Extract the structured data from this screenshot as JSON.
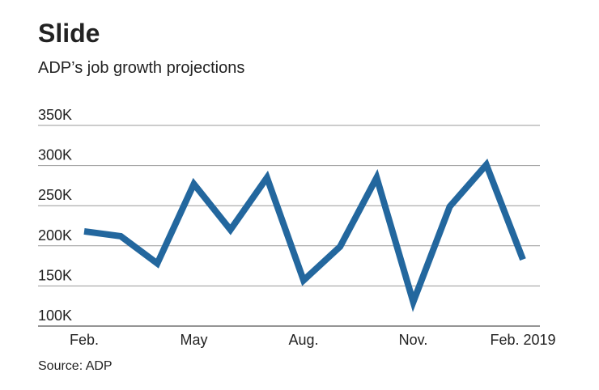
{
  "chart_data": {
    "type": "line",
    "title": "Slide",
    "subtitle": "ADP’s job growth projections",
    "source": "Source: ADP",
    "categories": [
      "Feb.",
      null,
      null,
      "May",
      null,
      null,
      "Aug.",
      null,
      null,
      "Nov.",
      null,
      null,
      "Feb. 2019"
    ],
    "values": [
      218000,
      212000,
      178000,
      277000,
      220000,
      285000,
      157000,
      199000,
      285000,
      130000,
      249000,
      301000,
      183000
    ],
    "color": "#23679e",
    "ylim": [
      100000,
      350000
    ],
    "yticks": [
      {
        "value": 100000,
        "label": "100K"
      },
      {
        "value": 150000,
        "label": "150K"
      },
      {
        "value": 200000,
        "label": "200K"
      },
      {
        "value": 250000,
        "label": "250K"
      },
      {
        "value": 300000,
        "label": "300K"
      },
      {
        "value": 350000,
        "label": "350K"
      }
    ],
    "grid": true
  }
}
